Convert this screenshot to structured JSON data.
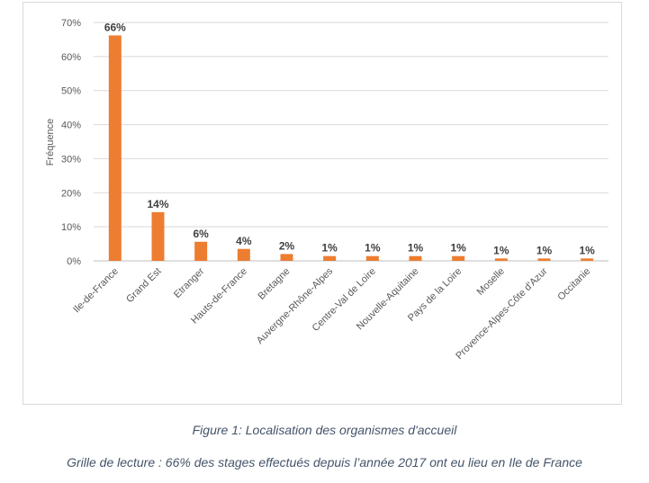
{
  "chart_data": {
    "type": "bar",
    "title": "",
    "xlabel": "",
    "ylabel": "Fréquence",
    "categories": [
      "Ile-de-France",
      "Grand Est",
      "Etranger",
      "Hauts-de-France",
      "Bretagne",
      "Auvergne-Rhône-Alpes",
      "Centre-Val de Loire",
      "Nouvelle-Aquitaine",
      "Pays de la Loire",
      "Moselle",
      "Provence-Alpes-Côte d'Azur",
      "Occitanie"
    ],
    "values": [
      66.2,
      14.3,
      5.6,
      3.5,
      2.0,
      1.4,
      1.4,
      1.4,
      1.4,
      0.7,
      0.7,
      0.7
    ],
    "data_labels": [
      "66%",
      "14%",
      "6%",
      "4%",
      "2%",
      "1%",
      "1%",
      "1%",
      "1%",
      "1%",
      "1%",
      "1%"
    ],
    "ylim": [
      0,
      70
    ],
    "yticks": [
      0,
      10,
      20,
      30,
      40,
      50,
      60,
      70
    ],
    "ytick_labels": [
      "0%",
      "10%",
      "20%",
      "30%",
      "40%",
      "50%",
      "60%",
      "70%"
    ],
    "grid": true,
    "legend": "none",
    "bar_color": "#ed7d31"
  },
  "captions": {
    "figure": "Figure 1: Localisation des organismes d'accueil",
    "reading_grid": "Grille de lecture : 66% des stages effectués depuis l’année 2017 ont eu lieu en Ile de France"
  }
}
